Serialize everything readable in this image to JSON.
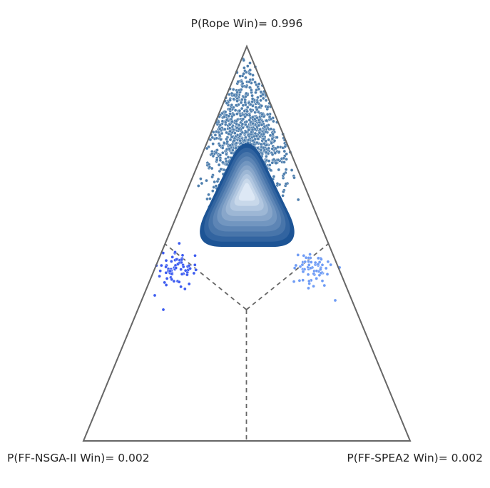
{
  "chart_data": {
    "type": "scatter",
    "subtype": "ternary-bayesian-posterior",
    "vertices": {
      "top": {
        "name": "Rope",
        "label": "P(Rope Win)= 0.996",
        "probability": 0.996
      },
      "left": {
        "name": "FF-NSGA-II",
        "label": "P(FF-NSGA-II Win)= 0.002",
        "probability": 0.002
      },
      "right": {
        "name": "FF-SPEA2",
        "label": "P(FF-SPEA2 Win)= 0.002",
        "probability": 0.002
      }
    },
    "regions": [
      {
        "name": "Rope",
        "color": "#4f7fae"
      },
      {
        "name": "FF-NSGA-II",
        "color": "#3d5cf0"
      },
      {
        "name": "FF-SPEA2",
        "color": "#6f9cf5"
      }
    ],
    "density": {
      "center": {
        "rope": 0.76,
        "left": 0.12,
        "right": 0.12
      },
      "levels": 10,
      "color_low": "#1d5495",
      "color_high": "#dde8f5"
    },
    "dividers": "dashed lines meeting at centroid (1/3, 1/3, 1/3)"
  }
}
